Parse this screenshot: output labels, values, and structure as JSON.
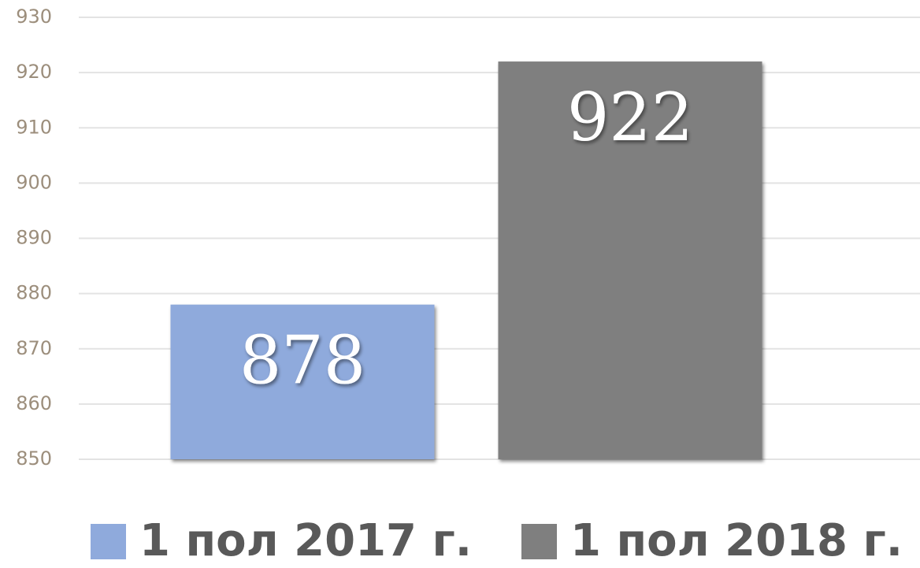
{
  "chart_data": {
    "type": "bar",
    "categories": [
      null
    ],
    "series": [
      {
        "name": "1 пол 2017 г.",
        "color": "#8faadc",
        "values": [
          878
        ]
      },
      {
        "name": "1 пол 2018 г.",
        "color": "#7f7f7f",
        "values": [
          922
        ]
      }
    ],
    "ylim": [
      850,
      930
    ],
    "yticks": [
      850,
      860,
      870,
      880,
      890,
      900,
      910,
      920,
      930
    ],
    "grid": true,
    "legend": "bottom",
    "data_labels": true
  }
}
